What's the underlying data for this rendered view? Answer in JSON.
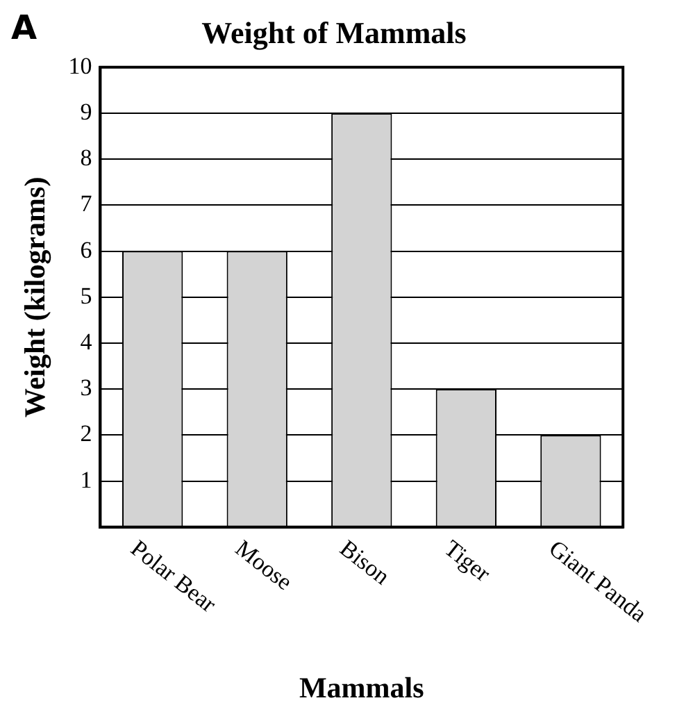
{
  "chart_data": {
    "type": "bar",
    "title": "Weight of Mammals",
    "xlabel": "Mammals",
    "ylabel": "Weight (kilograms)",
    "categories": [
      "Polar Bear",
      "Moose",
      "Bison",
      "Tiger",
      "Giant Panda"
    ],
    "values": [
      6,
      6,
      9,
      3,
      2
    ],
    "color": "#d3d3d3",
    "ylim": [
      0,
      10
    ],
    "yticks": [
      {
        "value": 0,
        "label": null
      },
      1,
      2,
      3,
      4,
      5,
      6,
      7,
      8,
      9,
      10
    ],
    "grid": "y",
    "legend": false,
    "annotations": [
      "A"
    ]
  }
}
